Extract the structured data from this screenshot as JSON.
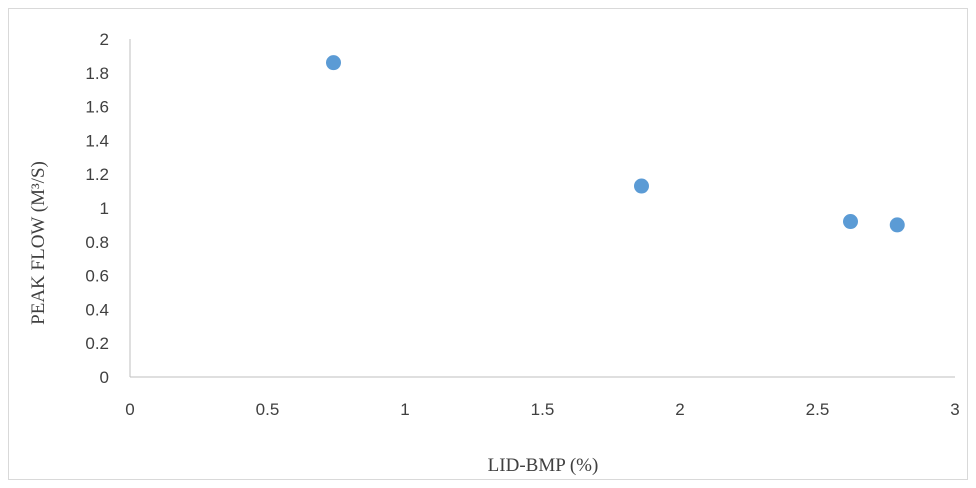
{
  "chart_data": {
    "type": "scatter",
    "title": "",
    "xlabel": "LID-BMP (%)",
    "ylabel": "PEAK FLOW (M³/S)",
    "xlim": [
      0,
      3
    ],
    "ylim": [
      0,
      2
    ],
    "xticks": [
      "0",
      "0.5",
      "1",
      "1.5",
      "2",
      "2.5",
      "3"
    ],
    "yticks": [
      "0",
      "0.2",
      "0.4",
      "0.6",
      "0.8",
      "1",
      "1.2",
      "1.4",
      "1.6",
      "1.8",
      "2"
    ],
    "grid": false,
    "legend": "none",
    "color": "#5b9bd5",
    "points": [
      {
        "x": 0.74,
        "y": 1.86
      },
      {
        "x": 1.86,
        "y": 1.13
      },
      {
        "x": 2.62,
        "y": 0.92
      },
      {
        "x": 2.79,
        "y": 0.9
      }
    ]
  }
}
